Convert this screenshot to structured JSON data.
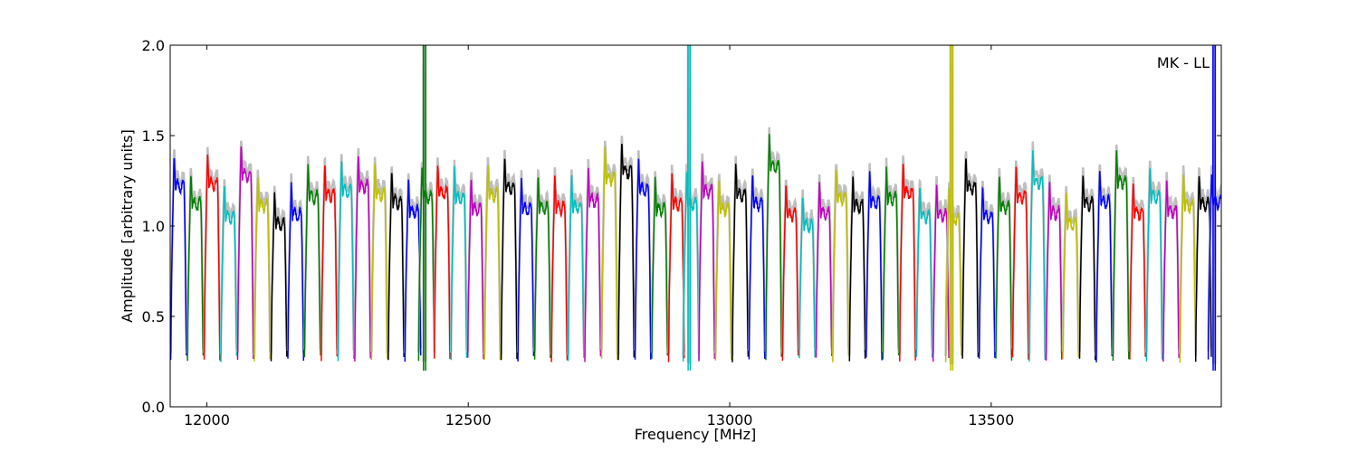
{
  "chart_data": {
    "type": "line",
    "title": "",
    "xlabel": "Frequency [MHz]",
    "ylabel": "Amplitude [arbitrary units]",
    "xlim": [
      11930,
      13940
    ],
    "ylim": [
      0.0,
      2.0
    ],
    "xticks": [
      12000,
      12500,
      13000,
      13500
    ],
    "yticks": [
      0.0,
      0.5,
      1.0,
      1.5,
      2.0
    ],
    "xtick_labels": [
      "12000",
      "12500",
      "13000",
      "13500"
    ],
    "ytick_labels": [
      "0.0",
      "0.5",
      "1.0",
      "1.5",
      "2.0"
    ],
    "grid": false,
    "legend": "none",
    "annotation": "MK - LL",
    "reference_trace_color": "#bfbfbf",
    "channel_colors": [
      "#0000ff",
      "#008000",
      "#ff0000",
      "#00bfbf",
      "#bf00bf",
      "#bfbf00",
      "#000000"
    ],
    "channel_width_mhz": 32,
    "channels": [
      {
        "center": 11946,
        "peak": 1.4,
        "color": "#0000ff"
      },
      {
        "center": 11978,
        "peak": 1.3,
        "color": "#008000"
      },
      {
        "center": 12010,
        "peak": 1.41,
        "color": "#ff0000"
      },
      {
        "center": 12042,
        "peak": 1.23,
        "color": "#00bfbf"
      },
      {
        "center": 12074,
        "peak": 1.46,
        "color": "#bf00bf"
      },
      {
        "center": 12106,
        "peak": 1.29,
        "color": "#bfbf00"
      },
      {
        "center": 12138,
        "peak": 1.19,
        "color": "#000000"
      },
      {
        "center": 12170,
        "peak": 1.24,
        "color": "#0000ff"
      },
      {
        "center": 12202,
        "peak": 1.34,
        "color": "#008000"
      },
      {
        "center": 12234,
        "peak": 1.35,
        "color": "#ff0000"
      },
      {
        "center": 12266,
        "peak": 1.37,
        "color": "#00bfbf"
      },
      {
        "center": 12298,
        "peak": 1.4,
        "color": "#bf00bf"
      },
      {
        "center": 12330,
        "peak": 1.35,
        "color": "#bfbf00"
      },
      {
        "center": 12362,
        "peak": 1.31,
        "color": "#000000"
      },
      {
        "center": 12394,
        "peak": 1.26,
        "color": "#0000ff"
      },
      {
        "center": 12420,
        "peak": 1.34,
        "color": "#008000",
        "spike": true
      },
      {
        "center": 12450,
        "peak": 1.36,
        "color": "#ff0000"
      },
      {
        "center": 12482,
        "peak": 1.33,
        "color": "#00bfbf"
      },
      {
        "center": 12514,
        "peak": 1.27,
        "color": "#bf00bf"
      },
      {
        "center": 12546,
        "peak": 1.35,
        "color": "#bfbf00"
      },
      {
        "center": 12578,
        "peak": 1.39,
        "color": "#000000"
      },
      {
        "center": 12610,
        "peak": 1.27,
        "color": "#0000ff"
      },
      {
        "center": 12642,
        "peak": 1.28,
        "color": "#008000"
      },
      {
        "center": 12674,
        "peak": 1.28,
        "color": "#ff0000"
      },
      {
        "center": 12706,
        "peak": 1.28,
        "color": "#00bfbf"
      },
      {
        "center": 12738,
        "peak": 1.32,
        "color": "#bf00bf"
      },
      {
        "center": 12770,
        "peak": 1.44,
        "color": "#bfbf00"
      },
      {
        "center": 12802,
        "peak": 1.48,
        "color": "#000000"
      },
      {
        "center": 12834,
        "peak": 1.38,
        "color": "#0000ff"
      },
      {
        "center": 12866,
        "peak": 1.27,
        "color": "#008000"
      },
      {
        "center": 12898,
        "peak": 1.3,
        "color": "#ff0000"
      },
      {
        "center": 12926,
        "peak": 1.3,
        "color": "#00bfbf",
        "spike": true
      },
      {
        "center": 12956,
        "peak": 1.37,
        "color": "#bf00bf"
      },
      {
        "center": 12988,
        "peak": 1.27,
        "color": "#bfbf00"
      },
      {
        "center": 13020,
        "peak": 1.35,
        "color": "#000000"
      },
      {
        "center": 13052,
        "peak": 1.3,
        "color": "#0000ff"
      },
      {
        "center": 13084,
        "peak": 1.51,
        "color": "#008000"
      },
      {
        "center": 13116,
        "peak": 1.24,
        "color": "#ff0000"
      },
      {
        "center": 13148,
        "peak": 1.18,
        "color": "#00bfbf"
      },
      {
        "center": 13180,
        "peak": 1.25,
        "color": "#bf00bf"
      },
      {
        "center": 13212,
        "peak": 1.33,
        "color": "#bfbf00"
      },
      {
        "center": 13244,
        "peak": 1.29,
        "color": "#000000"
      },
      {
        "center": 13276,
        "peak": 1.31,
        "color": "#0000ff"
      },
      {
        "center": 13308,
        "peak": 1.33,
        "color": "#008000"
      },
      {
        "center": 13340,
        "peak": 1.36,
        "color": "#ff0000"
      },
      {
        "center": 13372,
        "peak": 1.23,
        "color": "#00bfbf"
      },
      {
        "center": 13404,
        "peak": 1.24,
        "color": "#bf00bf"
      },
      {
        "center": 13428,
        "peak": 1.22,
        "color": "#bfbf00",
        "spike": true
      },
      {
        "center": 13460,
        "peak": 1.39,
        "color": "#000000"
      },
      {
        "center": 13492,
        "peak": 1.23,
        "color": "#0000ff"
      },
      {
        "center": 13524,
        "peak": 1.28,
        "color": "#008000"
      },
      {
        "center": 13556,
        "peak": 1.34,
        "color": "#ff0000"
      },
      {
        "center": 13588,
        "peak": 1.42,
        "color": "#00bfbf"
      },
      {
        "center": 13620,
        "peak": 1.25,
        "color": "#bf00bf"
      },
      {
        "center": 13652,
        "peak": 1.19,
        "color": "#bfbf00"
      },
      {
        "center": 13684,
        "peak": 1.3,
        "color": "#000000"
      },
      {
        "center": 13716,
        "peak": 1.31,
        "color": "#0000ff"
      },
      {
        "center": 13748,
        "peak": 1.42,
        "color": "#008000"
      },
      {
        "center": 13780,
        "peak": 1.25,
        "color": "#ff0000"
      },
      {
        "center": 13812,
        "peak": 1.34,
        "color": "#00bfbf"
      },
      {
        "center": 13844,
        "peak": 1.26,
        "color": "#bf00bf"
      },
      {
        "center": 13876,
        "peak": 1.29,
        "color": "#bfbf00"
      },
      {
        "center": 13906,
        "peak": 1.3,
        "color": "#000000"
      },
      {
        "center": 13930,
        "peak": 1.31,
        "color": "#0000ff",
        "spike": true
      }
    ]
  }
}
